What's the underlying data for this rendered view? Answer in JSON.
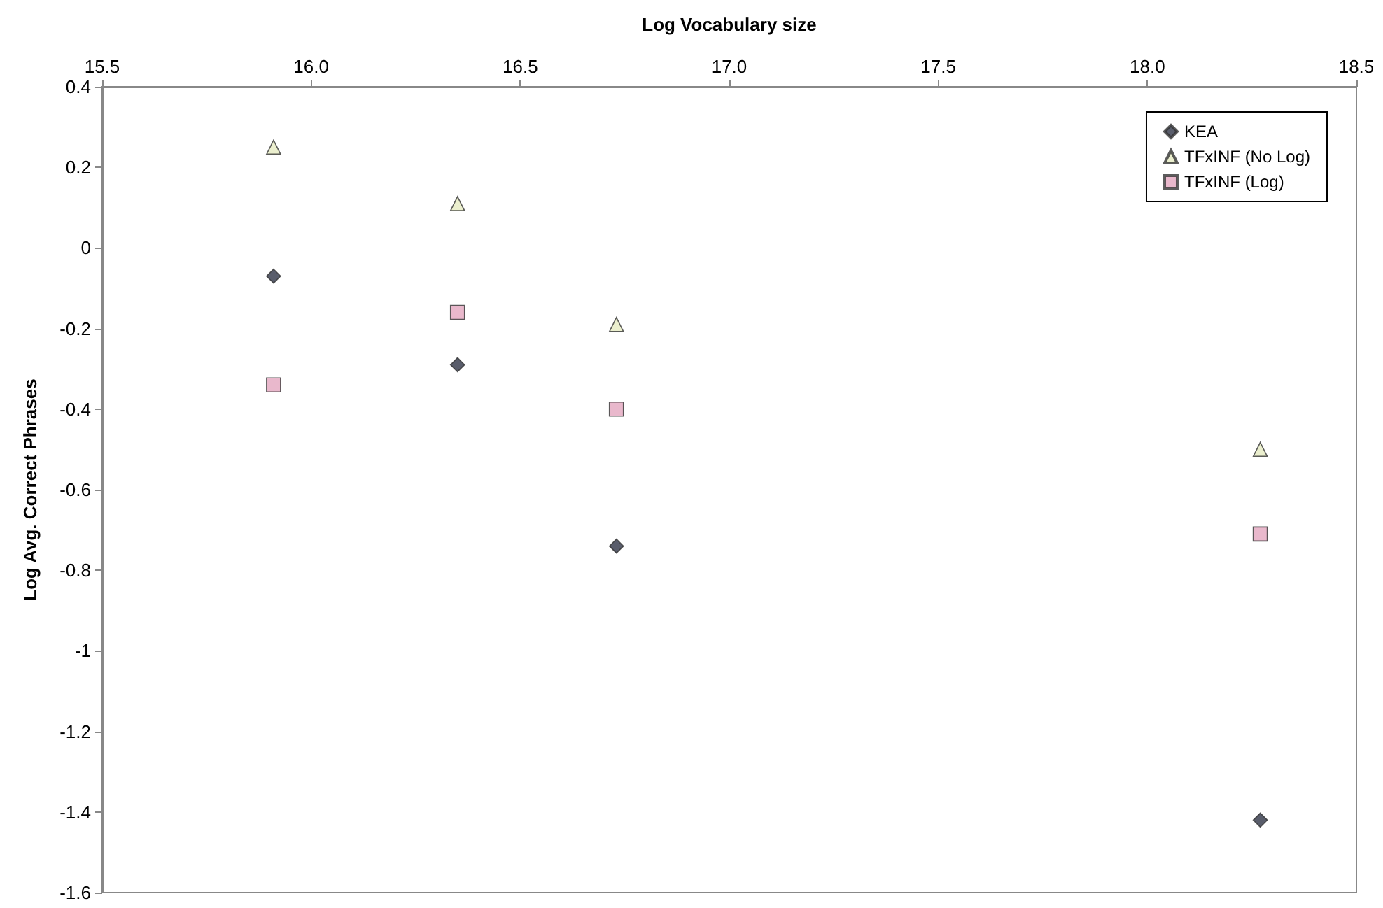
{
  "chart_data": {
    "type": "scatter",
    "xlabel": "Log Vocabulary size",
    "ylabel": "Log Avg. Correct Phrases",
    "x": [
      15.91,
      16.35,
      16.73,
      18.27
    ],
    "series": [
      {
        "name": "KEA",
        "color": "#2f3546",
        "marker": "diamond",
        "values": [
          -0.07,
          -0.29,
          -0.74,
          -1.42
        ]
      },
      {
        "name": "TFxINF (No Log)",
        "color": "#e6ebc2",
        "marker": "triangle",
        "values": [
          0.25,
          0.11,
          -0.19,
          -0.5
        ]
      },
      {
        "name": "TFxINF (Log)",
        "color": "#e3a6bf",
        "marker": "square",
        "values": [
          -0.34,
          -0.16,
          -0.4,
          -0.71
        ]
      }
    ],
    "xlim": [
      15.5,
      18.5
    ],
    "xticks": [
      15.5,
      {
        "value": 16,
        "label": "16.0"
      },
      16.5,
      {
        "value": 17,
        "label": "17.0"
      },
      17.5,
      {
        "value": 18,
        "label": "18.0"
      },
      18.5
    ],
    "ylim": [
      -1.6,
      0.4
    ],
    "yticks": [
      -1.6,
      -1.4,
      -1.2,
      -1,
      -0.8,
      -0.6,
      -0.4,
      -0.2,
      0,
      0.2,
      0.4
    ],
    "grid": false,
    "legend": "top right"
  }
}
